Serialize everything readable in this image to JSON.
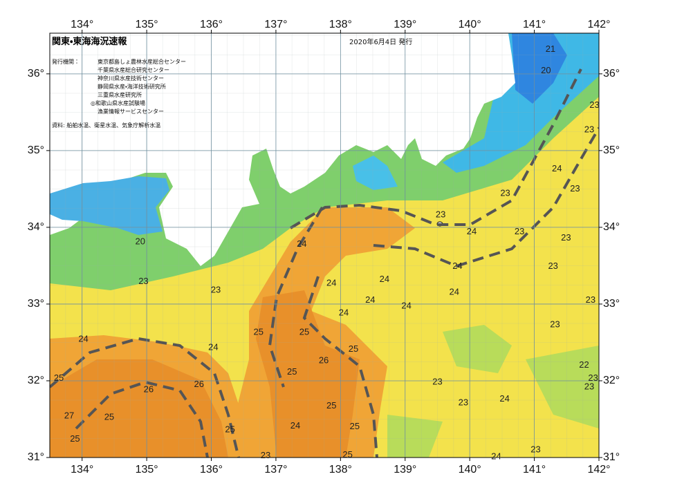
{
  "header": {
    "title": "関東・東海海況速報",
    "date": "2020年6月4日 発行",
    "issuer_label": "発行機関：",
    "issuers": [
      "東京都島しょ農林水産総合センター",
      "千葉県水産総合研究センター",
      "神奈川県水産技術センター",
      "静岡県水産・海洋技術研究所",
      "三重県水産研究所",
      "◎和歌山県水産試験場",
      "漁業情報サービスセンター"
    ],
    "source": "資料: 船舶水温、衛星水温、気象庁解析水温"
  },
  "map": {
    "type": "contour-map",
    "xlim": [
      133.5,
      142
    ],
    "ylim": [
      31,
      36.53
    ],
    "grid": true,
    "xticks": [
      {
        "value": 134,
        "label": "134°"
      },
      {
        "value": 135,
        "label": "135°"
      },
      {
        "value": 136,
        "label": "136°"
      },
      {
        "value": 137,
        "label": "137°"
      },
      {
        "value": 138,
        "label": "138°"
      },
      {
        "value": 139,
        "label": "139°"
      },
      {
        "value": 140,
        "label": "140°"
      },
      {
        "value": 141,
        "label": "141°"
      },
      {
        "value": 142,
        "label": "142°"
      }
    ],
    "yticks": [
      {
        "value": 31,
        "label": "31°"
      },
      {
        "value": 32,
        "label": "32°"
      },
      {
        "value": 33,
        "label": "33°"
      },
      {
        "value": 34,
        "label": "34°"
      },
      {
        "value": 35,
        "label": "35°"
      },
      {
        "value": 36,
        "label": "36°"
      }
    ],
    "contour_labels": [
      {
        "lon": 141.25,
        "lat": 36.32,
        "value": 21
      },
      {
        "lon": 141.18,
        "lat": 36.04,
        "value": 20
      },
      {
        "lon": 141.93,
        "lat": 35.59,
        "value": 23
      },
      {
        "lon": 141.85,
        "lat": 35.27,
        "value": 23
      },
      {
        "lon": 141.35,
        "lat": 34.76,
        "value": 24
      },
      {
        "lon": 141.63,
        "lat": 34.5,
        "value": 23
      },
      {
        "lon": 140.55,
        "lat": 34.44,
        "value": 23
      },
      {
        "lon": 139.55,
        "lat": 34.16,
        "value": 23
      },
      {
        "lon": 140.03,
        "lat": 33.94,
        "value": 24
      },
      {
        "lon": 140.77,
        "lat": 33.94,
        "value": 23
      },
      {
        "lon": 141.49,
        "lat": 33.86,
        "value": 23
      },
      {
        "lon": 139.81,
        "lat": 33.49,
        "value": 24
      },
      {
        "lon": 141.29,
        "lat": 33.49,
        "value": 23
      },
      {
        "lon": 137.4,
        "lat": 33.78,
        "value": 24
      },
      {
        "lon": 137.86,
        "lat": 33.27,
        "value": 24
      },
      {
        "lon": 138.68,
        "lat": 33.32,
        "value": 24
      },
      {
        "lon": 138.46,
        "lat": 33.05,
        "value": 24
      },
      {
        "lon": 139.02,
        "lat": 32.97,
        "value": 24
      },
      {
        "lon": 139.76,
        "lat": 33.15,
        "value": 24
      },
      {
        "lon": 141.87,
        "lat": 33.05,
        "value": 23
      },
      {
        "lon": 138.05,
        "lat": 32.88,
        "value": 24
      },
      {
        "lon": 141.32,
        "lat": 32.73,
        "value": 23
      },
      {
        "lon": 136.73,
        "lat": 32.63,
        "value": 25
      },
      {
        "lon": 137.44,
        "lat": 32.63,
        "value": 25
      },
      {
        "lon": 138.2,
        "lat": 32.41,
        "value": 25
      },
      {
        "lon": 137.74,
        "lat": 32.26,
        "value": 26
      },
      {
        "lon": 137.25,
        "lat": 32.11,
        "value": 25
      },
      {
        "lon": 136.03,
        "lat": 32.43,
        "value": 24
      },
      {
        "lon": 134.02,
        "lat": 32.54,
        "value": 24
      },
      {
        "lon": 133.64,
        "lat": 32.03,
        "value": 25
      },
      {
        "lon": 135.81,
        "lat": 31.95,
        "value": 26
      },
      {
        "lon": 135.03,
        "lat": 31.88,
        "value": 26
      },
      {
        "lon": 133.8,
        "lat": 31.54,
        "value": 27
      },
      {
        "lon": 134.42,
        "lat": 31.52,
        "value": 25
      },
      {
        "lon": 133.89,
        "lat": 31.24,
        "value": 25
      },
      {
        "lon": 136.29,
        "lat": 31.36,
        "value": 25
      },
      {
        "lon": 137.3,
        "lat": 31.41,
        "value": 24
      },
      {
        "lon": 137.86,
        "lat": 31.67,
        "value": 25
      },
      {
        "lon": 138.22,
        "lat": 31.4,
        "value": 25
      },
      {
        "lon": 138.11,
        "lat": 31.03,
        "value": 25
      },
      {
        "lon": 136.84,
        "lat": 31.02,
        "value": 23
      },
      {
        "lon": 139.5,
        "lat": 31.98,
        "value": 23
      },
      {
        "lon": 139.9,
        "lat": 31.71,
        "value": 23
      },
      {
        "lon": 140.54,
        "lat": 31.76,
        "value": 24
      },
      {
        "lon": 141.77,
        "lat": 32.2,
        "value": 22
      },
      {
        "lon": 141.91,
        "lat": 32.03,
        "value": 23
      },
      {
        "lon": 141.85,
        "lat": 31.92,
        "value": 23
      },
      {
        "lon": 141.02,
        "lat": 31.1,
        "value": 23
      },
      {
        "lon": 140.41,
        "lat": 31.01,
        "value": 24
      },
      {
        "lon": 134.9,
        "lat": 33.81,
        "value": 20
      },
      {
        "lon": 134.95,
        "lat": 33.29,
        "value": 23
      },
      {
        "lon": 136.07,
        "lat": 33.18,
        "value": 23
      }
    ]
  }
}
